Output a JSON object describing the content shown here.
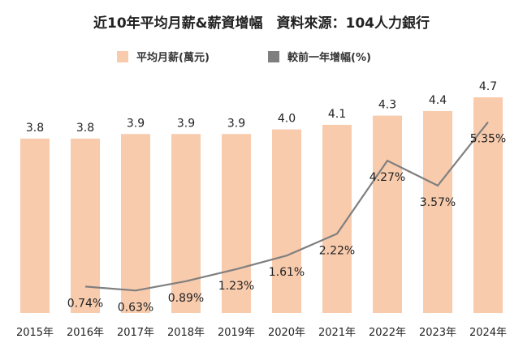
{
  "chart_data": {
    "type": "bar",
    "title": "近10年平均月薪&薪資增幅　資料來源：104人力銀行",
    "categories": [
      "2015年",
      "2016年",
      "2017年",
      "2018年",
      "2019年",
      "2020年",
      "2021年",
      "2022年",
      "2023年",
      "2024年"
    ],
    "series": [
      {
        "name": "平均月薪(萬元)",
        "type": "bar",
        "color": "#F8CBAD",
        "values": [
          3.8,
          3.8,
          3.9,
          3.9,
          3.9,
          4.0,
          4.1,
          4.3,
          4.4,
          4.7
        ],
        "labels": [
          "3.8",
          "3.8",
          "3.9",
          "3.9",
          "3.9",
          "4.0",
          "4.1",
          "4.3",
          "4.4",
          "4.7"
        ]
      },
      {
        "name": "較前一年增幅(%)",
        "type": "line",
        "color": "#7F7F7F",
        "values": [
          null,
          0.74,
          0.63,
          0.89,
          1.23,
          1.61,
          2.22,
          4.27,
          3.57,
          5.35
        ],
        "labels": [
          "",
          "0.74%",
          "0.63%",
          "0.89%",
          "1.23%",
          "1.61%",
          "2.22%",
          "4.27%",
          "3.57%",
          "5.35%"
        ]
      }
    ],
    "ylim_bar": [
      0,
      4.7
    ],
    "ylim_line": [
      0,
      6.5
    ],
    "legend_position": "top",
    "grid": false
  }
}
